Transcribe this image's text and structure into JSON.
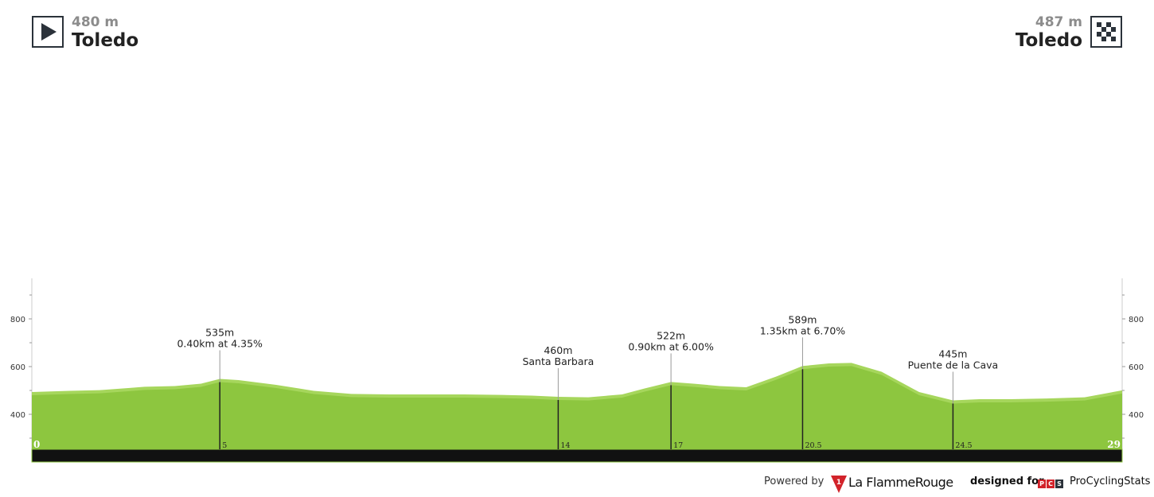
{
  "header": {
    "start": {
      "elevation": "480 m",
      "name": "Toledo",
      "icon": "play-icon"
    },
    "finish": {
      "elevation": "487 m",
      "name": "Toledo",
      "icon": "checkered-flag-icon"
    }
  },
  "chart_data": {
    "type": "area",
    "xlim": [
      0,
      29
    ],
    "ylim": [
      250,
      1000
    ],
    "fill_color": "#8dc63f",
    "highlight_color": "#a6d65c",
    "base_color": "#111111",
    "axis_color": "#cccccc",
    "y_ticks": [
      400,
      600,
      800
    ],
    "distance_labels": [
      {
        "km": 0,
        "label": "0"
      },
      {
        "km": 5,
        "label": "5"
      },
      {
        "km": 14,
        "label": "14"
      },
      {
        "km": 17,
        "label": "17"
      },
      {
        "km": 20.5,
        "label": "20.5"
      },
      {
        "km": 24.5,
        "label": "24.5"
      },
      {
        "km": 29,
        "label": "29"
      }
    ],
    "points": [
      [
        0,
        480
      ],
      [
        1,
        485
      ],
      [
        1.8,
        488
      ],
      [
        2.6,
        497
      ],
      [
        3,
        502
      ],
      [
        3.8,
        505
      ],
      [
        4.5,
        515
      ],
      [
        5,
        535
      ],
      [
        5.5,
        530
      ],
      [
        6.5,
        510
      ],
      [
        7.5,
        485
      ],
      [
        8.5,
        472
      ],
      [
        9.5,
        470
      ],
      [
        10.5,
        470
      ],
      [
        11.5,
        470
      ],
      [
        12.5,
        468
      ],
      [
        13.3,
        465
      ],
      [
        14,
        460
      ],
      [
        14.8,
        458
      ],
      [
        15.7,
        470
      ],
      [
        16.3,
        495
      ],
      [
        17,
        522
      ],
      [
        17.6,
        515
      ],
      [
        18.3,
        505
      ],
      [
        19,
        500
      ],
      [
        19.8,
        545
      ],
      [
        20.5,
        589
      ],
      [
        21.2,
        600
      ],
      [
        21.8,
        602
      ],
      [
        22.6,
        565
      ],
      [
        23.6,
        480
      ],
      [
        24.5,
        445
      ],
      [
        25.2,
        450
      ],
      [
        26,
        450
      ],
      [
        27,
        453
      ],
      [
        28,
        458
      ],
      [
        29,
        487
      ]
    ],
    "climb_annotations": [
      {
        "km": 5,
        "elevation": 535,
        "line1": "535m",
        "line2": "0.40km at 4.35%"
      },
      {
        "km": 14,
        "elevation": 460,
        "line1": "460m",
        "line2": "Santa Barbara"
      },
      {
        "km": 17,
        "elevation": 522,
        "line1": "522m",
        "line2": "0.90km at 6.00%"
      },
      {
        "km": 20.5,
        "elevation": 589,
        "line1": "589m",
        "line2": "1.35km at 6.70%"
      },
      {
        "km": 24.5,
        "elevation": 445,
        "line1": "445m",
        "line2": "Puente de la Cava"
      }
    ]
  },
  "footer": {
    "powered_by": "Powered by",
    "brand_number": "1",
    "brand_name": "La FlammeRouge",
    "designed_for": "designed for",
    "pcs_letters": [
      "P",
      "C",
      "S"
    ],
    "pcs_name": "ProCyclingStats"
  }
}
